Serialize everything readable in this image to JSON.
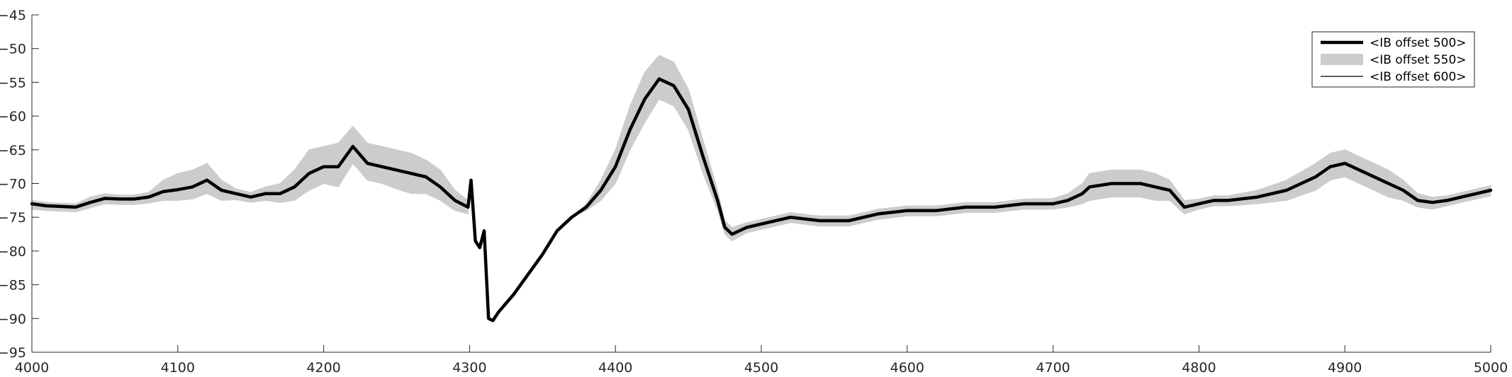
{
  "chart_data": {
    "type": "line",
    "title": "",
    "xlabel": "",
    "ylabel": "",
    "xlim": [
      4000,
      5000
    ],
    "ylim": [
      -95,
      -45
    ],
    "xticks": [
      4000,
      4100,
      4200,
      4300,
      4400,
      4500,
      4600,
      4700,
      4800,
      4900,
      5000
    ],
    "yticks": [
      -45,
      -50,
      -55,
      -60,
      -65,
      -70,
      -75,
      -80,
      -85,
      -90,
      -95
    ],
    "grid": false,
    "legend_position": "top-right",
    "colors": {
      "thick": "#000000",
      "band": "#cccccc",
      "thin": "#000000"
    },
    "series": [
      {
        "name": "<IB offset 500>",
        "style": "thick-line",
        "x": [
          4000,
          4010,
          4020,
          4030,
          4040,
          4050,
          4060,
          4070,
          4080,
          4090,
          4100,
          4110,
          4120,
          4130,
          4140,
          4150,
          4160,
          4170,
          4180,
          4190,
          4200,
          4210,
          4220,
          4230,
          4240,
          4250,
          4260,
          4270,
          4280,
          4290,
          4299,
          4301,
          4304,
          4307,
          4310,
          4313,
          4316,
          4320,
          4330,
          4340,
          4350,
          4360,
          4370,
          4380,
          4390,
          4400,
          4410,
          4420,
          4430,
          4440,
          4450,
          4460,
          4470,
          4475,
          4480,
          4490,
          4500,
          4520,
          4540,
          4560,
          4580,
          4600,
          4620,
          4640,
          4660,
          4680,
          4700,
          4710,
          4720,
          4725,
          4740,
          4760,
          4770,
          4780,
          4790,
          4800,
          4810,
          4820,
          4840,
          4860,
          4880,
          4890,
          4900,
          4910,
          4930,
          4940,
          4950,
          4960,
          4970,
          4980,
          4990,
          5000
        ],
        "values": [
          -73,
          -73.3,
          -73.4,
          -73.5,
          -72.8,
          -72.2,
          -72.3,
          -72.3,
          -72.0,
          -71.2,
          -70.9,
          -70.5,
          -69.5,
          -71.0,
          -71.5,
          -72.0,
          -71.5,
          -71.5,
          -70.5,
          -68.5,
          -67.5,
          -67.5,
          -64.5,
          -67.0,
          -67.5,
          -68.0,
          -68.5,
          -69.0,
          -70.5,
          -72.5,
          -73.5,
          -69.5,
          -78.5,
          -79.5,
          -77.0,
          -90.0,
          -90.3,
          -89.0,
          -86.5,
          -83.5,
          -80.5,
          -77.0,
          -75.0,
          -73.5,
          -71.0,
          -67.5,
          -62.0,
          -57.5,
          -54.5,
          -55.5,
          -59.0,
          -66.0,
          -72.5,
          -76.5,
          -77.5,
          -76.5,
          -76.0,
          -75.0,
          -75.5,
          -75.5,
          -74.5,
          -74.0,
          -74.0,
          -73.5,
          -73.5,
          -73.0,
          -73.0,
          -72.5,
          -71.5,
          -70.5,
          -70.0,
          -70.0,
          -70.5,
          -71.0,
          -73.5,
          -73.0,
          -72.5,
          -72.5,
          -72.0,
          -71.0,
          -69.0,
          -67.5,
          -67.0,
          -68.0,
          -70.0,
          -71.0,
          -72.5,
          -72.8,
          -72.5,
          -72.0,
          -71.5,
          -71.0
        ]
      },
      {
        "name": "<IB offset 550>",
        "style": "shaded-band",
        "x": [
          4000,
          4010,
          4020,
          4030,
          4040,
          4050,
          4060,
          4070,
          4080,
          4090,
          4100,
          4110,
          4120,
          4130,
          4140,
          4150,
          4160,
          4170,
          4180,
          4190,
          4200,
          4210,
          4220,
          4230,
          4240,
          4250,
          4260,
          4270,
          4280,
          4290,
          4299,
          4301,
          4304,
          4307,
          4310,
          4313,
          4316,
          4320,
          4330,
          4340,
          4350,
          4360,
          4370,
          4380,
          4390,
          4400,
          4410,
          4420,
          4430,
          4440,
          4450,
          4460,
          4470,
          4475,
          4480,
          4490,
          4500,
          4520,
          4540,
          4560,
          4580,
          4600,
          4620,
          4640,
          4660,
          4680,
          4700,
          4710,
          4720,
          4725,
          4740,
          4760,
          4770,
          4780,
          4790,
          4800,
          4810,
          4820,
          4840,
          4860,
          4880,
          4890,
          4900,
          4910,
          4930,
          4940,
          4950,
          4960,
          4970,
          4980,
          4990,
          5000
        ],
        "upper": [
          -72.5,
          -72.8,
          -72.9,
          -73.0,
          -72.0,
          -71.5,
          -71.7,
          -71.7,
          -71.3,
          -69.5,
          -68.5,
          -68.0,
          -67.0,
          -69.5,
          -70.8,
          -71.3,
          -70.5,
          -70.0,
          -68.0,
          -65.0,
          -64.5,
          -64.0,
          -61.5,
          -64.0,
          -64.5,
          -65.0,
          -65.5,
          -66.5,
          -68.0,
          -71.0,
          -72.5,
          -69.5,
          -78.5,
          -79.5,
          -77.0,
          -90.0,
          -90.3,
          -89.0,
          -86.5,
          -83.5,
          -80.5,
          -77.0,
          -75.0,
          -73.0,
          -69.5,
          -65.0,
          -58.5,
          -53.5,
          -51.0,
          -52.0,
          -56.0,
          -63.5,
          -71.0,
          -75.5,
          -76.5,
          -75.8,
          -75.3,
          -74.3,
          -74.8,
          -74.8,
          -73.8,
          -73.3,
          -73.3,
          -72.8,
          -72.8,
          -72.3,
          -72.2,
          -71.5,
          -70.0,
          -68.5,
          -68.0,
          -68.0,
          -68.5,
          -69.5,
          -72.5,
          -72.3,
          -71.8,
          -71.8,
          -71.0,
          -69.5,
          -67.0,
          -65.5,
          -65.0,
          -66.0,
          -68.0,
          -69.5,
          -71.5,
          -72.0,
          -71.8,
          -71.3,
          -70.8,
          -70.3
        ],
        "lower": [
          -73.8,
          -74.0,
          -74.1,
          -74.2,
          -73.6,
          -73.0,
          -73.1,
          -73.1,
          -72.9,
          -72.5,
          -72.5,
          -72.3,
          -71.5,
          -72.5,
          -72.4,
          -72.8,
          -72.5,
          -72.8,
          -72.5,
          -71.0,
          -70.0,
          -70.5,
          -67.0,
          -69.5,
          -70.0,
          -70.8,
          -71.5,
          -71.5,
          -72.5,
          -74.0,
          -74.5,
          -69.5,
          -78.5,
          -79.5,
          -77.0,
          -90.0,
          -90.3,
          -89.0,
          -86.5,
          -83.5,
          -80.5,
          -77.0,
          -75.0,
          -74.0,
          -72.5,
          -70.0,
          -65.0,
          -61.0,
          -57.5,
          -58.5,
          -62.0,
          -68.5,
          -74.0,
          -77.5,
          -78.5,
          -77.3,
          -76.8,
          -75.8,
          -76.3,
          -76.3,
          -75.3,
          -74.8,
          -74.8,
          -74.3,
          -74.3,
          -73.8,
          -73.8,
          -73.5,
          -73.0,
          -72.5,
          -72.0,
          -72.0,
          -72.5,
          -72.5,
          -74.5,
          -73.8,
          -73.3,
          -73.3,
          -73.0,
          -72.5,
          -71.0,
          -69.5,
          -69.0,
          -70.0,
          -72.0,
          -72.5,
          -73.5,
          -73.8,
          -73.3,
          -72.8,
          -72.3,
          -71.8
        ]
      },
      {
        "name": "<IB offset 600>",
        "style": "thin-line",
        "x": [
          4000,
          4010,
          4020,
          4030,
          4040,
          4050,
          4060,
          4070,
          4080,
          4090,
          4100,
          4110,
          4120,
          4130,
          4140,
          4150,
          4160,
          4170,
          4180,
          4190,
          4200,
          4210,
          4220,
          4230,
          4240,
          4250,
          4260,
          4270,
          4280,
          4290,
          4299,
          4301,
          4304,
          4307,
          4310,
          4313,
          4316,
          4320,
          4330,
          4340,
          4350,
          4360,
          4370,
          4380,
          4390,
          4400,
          4410,
          4420,
          4430,
          4440,
          4450,
          4460,
          4470,
          4475,
          4480,
          4490,
          4500,
          4520,
          4540,
          4560,
          4580,
          4600,
          4620,
          4640,
          4660,
          4680,
          4700,
          4710,
          4720,
          4725,
          4740,
          4760,
          4770,
          4780,
          4790,
          4800,
          4810,
          4820,
          4840,
          4860,
          4880,
          4890,
          4900,
          4910,
          4930,
          4940,
          4950,
          4960,
          4970,
          4980,
          4990,
          5000
        ],
        "values": [
          -73,
          -73.3,
          -73.4,
          -73.5,
          -72.8,
          -72.2,
          -72.3,
          -72.3,
          -72.0,
          -71.2,
          -70.9,
          -70.5,
          -69.5,
          -71.0,
          -71.5,
          -72.0,
          -71.5,
          -71.5,
          -70.5,
          -68.5,
          -67.5,
          -67.5,
          -64.5,
          -67.0,
          -67.5,
          -68.0,
          -68.5,
          -69.0,
          -70.5,
          -72.5,
          -73.5,
          -69.5,
          -78.5,
          -79.5,
          -77.0,
          -90.0,
          -90.3,
          -89.0,
          -86.5,
          -83.5,
          -80.5,
          -77.0,
          -75.0,
          -73.5,
          -71.0,
          -67.5,
          -62.0,
          -57.5,
          -54.5,
          -55.5,
          -59.0,
          -66.0,
          -72.5,
          -76.5,
          -77.5,
          -76.5,
          -76.0,
          -75.0,
          -75.5,
          -75.5,
          -74.5,
          -74.0,
          -74.0,
          -73.5,
          -73.5,
          -73.0,
          -73.0,
          -72.5,
          -71.5,
          -70.5,
          -70.0,
          -70.0,
          -70.5,
          -71.0,
          -73.5,
          -73.0,
          -72.5,
          -72.5,
          -72.0,
          -71.0,
          -69.0,
          -67.5,
          -67.0,
          -68.0,
          -70.0,
          -71.0,
          -72.5,
          -72.8,
          -72.5,
          -72.0,
          -71.5,
          -71.0
        ]
      }
    ]
  }
}
